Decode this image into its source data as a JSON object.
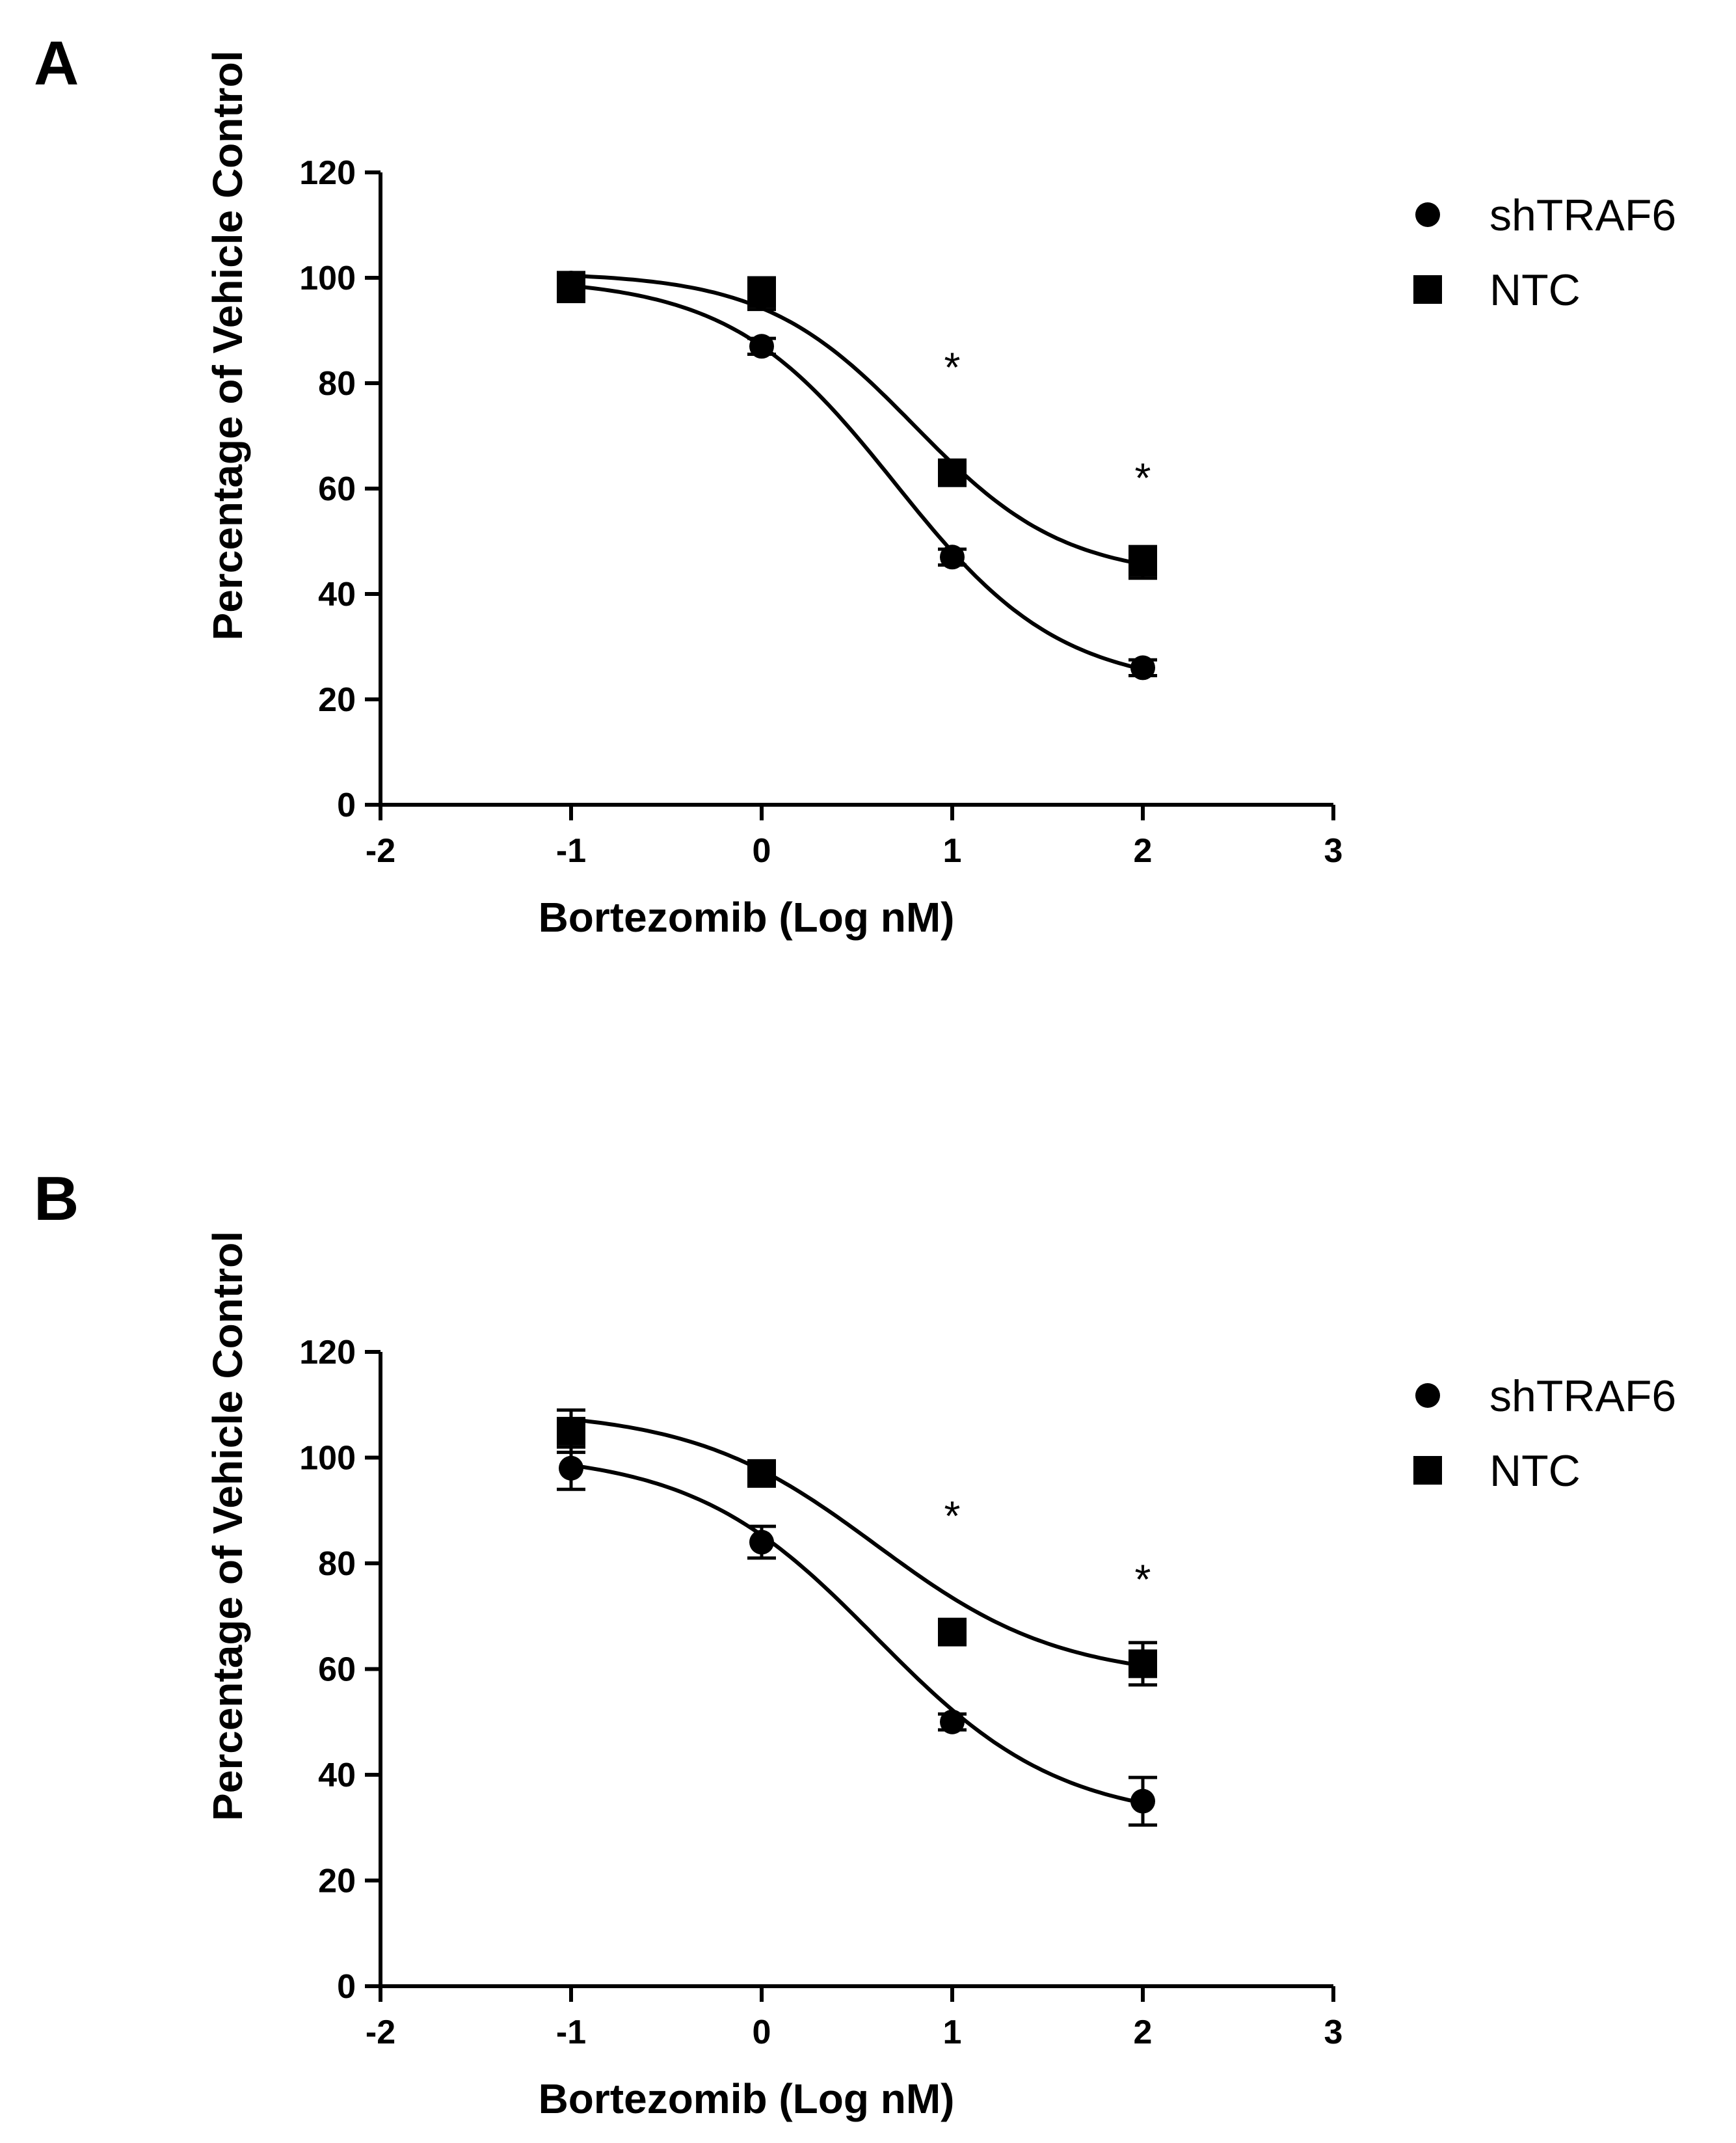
{
  "chart_data": [
    {
      "panel_label": "A",
      "type": "scatter",
      "xlabel": "Bortezomib (Log nM)",
      "ylabel": "Percentage of Vehicle Control",
      "xlim": [
        -2,
        3
      ],
      "ylim": [
        0,
        120
      ],
      "xticks": [
        "-2",
        "-1",
        "0",
        "1",
        "2",
        "3"
      ],
      "yticks": [
        "0",
        "20",
        "40",
        "60",
        "80",
        "100",
        "120"
      ],
      "legend_position": "right",
      "series": [
        {
          "name": "shTRAF6",
          "marker": "circle",
          "x": [
            -1,
            0,
            1,
            2
          ],
          "y": [
            99,
            87,
            47,
            26
          ],
          "err": [
            2,
            1.5,
            1.5,
            1.5
          ],
          "fit": {
            "bottom": 22,
            "top": 100,
            "logec50": 0.7,
            "hill": 1.0
          }
        },
        {
          "name": "NTC",
          "marker": "square",
          "x": [
            -1,
            0,
            1,
            2
          ],
          "y": [
            98,
            97,
            63,
            46
          ],
          "err": [
            2.5,
            3,
            2,
            3
          ],
          "fit": {
            "bottom": 43,
            "top": 101,
            "logec50": 0.8,
            "hill": 1.1
          }
        }
      ],
      "annotations": [
        {
          "text": "*",
          "x": 1,
          "y": 84
        },
        {
          "text": "*",
          "x": 2,
          "y": 63
        }
      ]
    },
    {
      "panel_label": "B",
      "type": "scatter",
      "xlabel": "Bortezomib (Log nM)",
      "ylabel": "Percentage of Vehicle Control",
      "xlim": [
        -2,
        3
      ],
      "ylim": [
        0,
        120
      ],
      "xticks": [
        "-2",
        "-1",
        "0",
        "1",
        "2",
        "3"
      ],
      "yticks": [
        "0",
        "20",
        "40",
        "60",
        "80",
        "100",
        "120"
      ],
      "legend_position": "right",
      "series": [
        {
          "name": "shTRAF6",
          "marker": "circle",
          "x": [
            -1,
            0,
            1,
            2
          ],
          "y": [
            98,
            84,
            50,
            35
          ],
          "err": [
            4,
            3,
            1.5,
            4.5
          ],
          "fit": {
            "bottom": 31,
            "top": 101,
            "logec50": 0.6,
            "hill": 0.9
          }
        },
        {
          "name": "NTC",
          "marker": "square",
          "x": [
            -1,
            0,
            1,
            2
          ],
          "y": [
            105,
            97,
            67,
            61
          ],
          "err": [
            4,
            1.5,
            2,
            4
          ],
          "fit": {
            "bottom": 58,
            "top": 109,
            "logec50": 0.6,
            "hill": 0.9
          }
        }
      ],
      "annotations": [
        {
          "text": "*",
          "x": 1,
          "y": 90
        },
        {
          "text": "*",
          "x": 2,
          "y": 78
        }
      ]
    }
  ]
}
